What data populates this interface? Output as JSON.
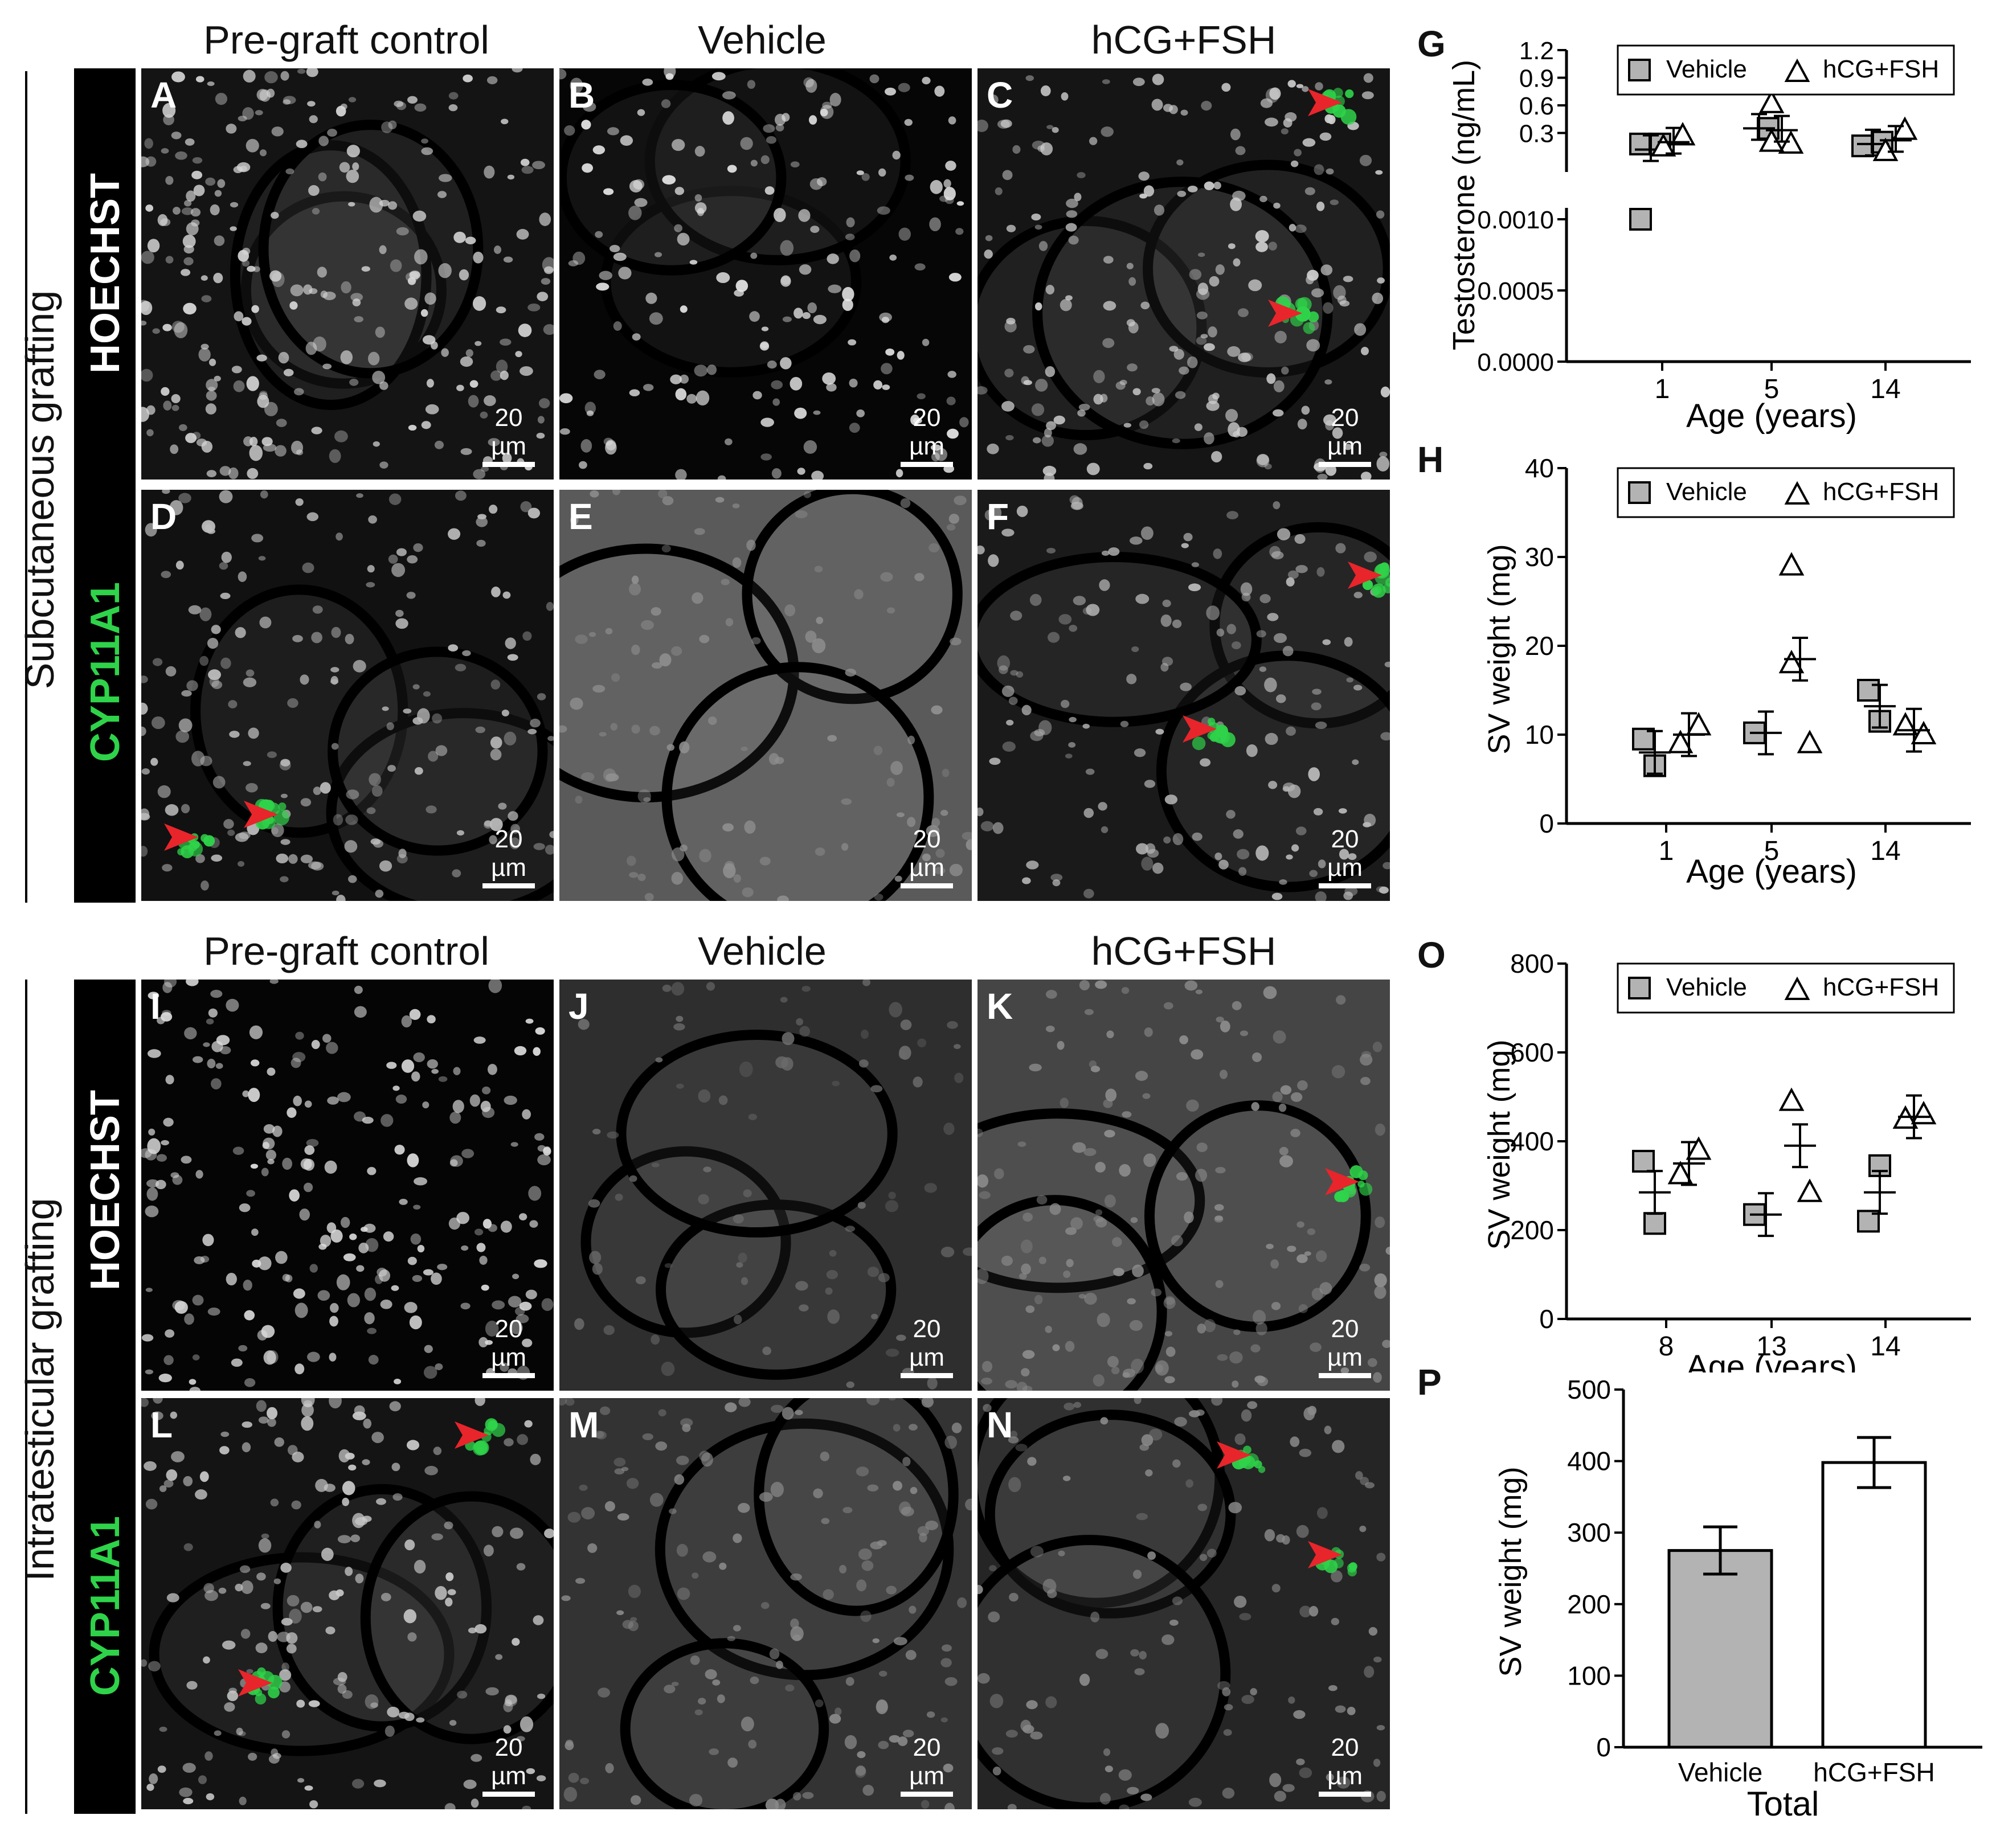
{
  "column_headers": [
    "Pre-graft control",
    "Vehicle",
    "hCG+FSH"
  ],
  "sections": [
    {
      "title": "Subcutaneous grafting",
      "stains": [
        "HOECHST",
        "CYP11A1"
      ]
    },
    {
      "title": "Intratesticular grafting",
      "stains": [
        "HOECHST",
        "CYP11A1"
      ]
    }
  ],
  "panels": [
    {
      "label": "A",
      "scale": "20 µm"
    },
    {
      "label": "B",
      "scale": "20 µm"
    },
    {
      "label": "C",
      "scale": "20 µm"
    },
    {
      "label": "D",
      "scale": "20 µm"
    },
    {
      "label": "E",
      "scale": "20 µm"
    },
    {
      "label": "F",
      "scale": "20 µm"
    },
    {
      "label": "I",
      "scale": "20 µm"
    },
    {
      "label": "J",
      "scale": "20 µm"
    },
    {
      "label": "K",
      "scale": "20 µm"
    },
    {
      "label": "L",
      "scale": "20 µm"
    },
    {
      "label": "M",
      "scale": "20 µm"
    },
    {
      "label": "N",
      "scale": "20 µm"
    }
  ],
  "colors": {
    "vehicle": "#b3b3b3",
    "hcg": "#ffffff",
    "green": "#2fd34a",
    "arrow": "#e8252b"
  },
  "chart_data": [
    {
      "id": "G",
      "type": "scatter",
      "xlabel": "Age (years)",
      "ylabel": "Testosterone (ng/mL)",
      "categories": [
        "1",
        "5",
        "14"
      ],
      "yticks_upper": [
        "1.2",
        "0.9",
        "0.6",
        "0.3"
      ],
      "yticks_lower": [
        "0.0010",
        "0.0005",
        "0.0000"
      ],
      "legend": [
        "Vehicle",
        "hCG+FSH"
      ],
      "series": [
        {
          "name": "Vehicle",
          "points": [
            [
              0,
              0.18
            ],
            [
              0,
              0.18
            ],
            [
              0,
              0.001
            ],
            [
              1,
              0.35
            ],
            [
              2,
              0.16
            ],
            [
              2,
              0.2
            ]
          ],
          "mean": [
            0.12,
            0.35,
            0.18
          ]
        },
        {
          "name": "hCG+FSH",
          "points": [
            [
              0,
              0.15
            ],
            [
              0,
              0.27
            ],
            [
              1,
              0.62
            ],
            [
              1,
              0.18
            ],
            [
              1,
              0.2
            ],
            [
              2,
              0.33
            ],
            [
              2,
              0.1
            ]
          ],
          "mean": [
            0.2,
            0.33,
            0.22
          ]
        }
      ]
    },
    {
      "id": "H",
      "type": "scatter",
      "xlabel": "Age (years)",
      "ylabel": "SV weight  (mg)",
      "categories": [
        "1",
        "5",
        "14"
      ],
      "yticks": [
        "0",
        "10",
        "20",
        "30",
        "40"
      ],
      "ylim": [
        0,
        40
      ],
      "legend": [
        "Vehicle",
        "hCG+FSH"
      ],
      "series": [
        {
          "name": "Vehicle",
          "points": [
            [
              0,
              9.5
            ],
            [
              0,
              6.5
            ],
            [
              1,
              10.2
            ],
            [
              2,
              11.5
            ],
            [
              2,
              15
            ]
          ],
          "mean": [
            8,
            10.2,
            13.2
          ]
        },
        {
          "name": "hCG+FSH",
          "points": [
            [
              0,
              9
            ],
            [
              0,
              11
            ],
            [
              1,
              29
            ],
            [
              1,
              9
            ],
            [
              1,
              18
            ],
            [
              2,
              10
            ],
            [
              2,
              11
            ]
          ],
          "mean": [
            10,
            18.5,
            10.5
          ]
        }
      ]
    },
    {
      "id": "O",
      "type": "scatter",
      "xlabel": "Age (years)",
      "ylabel": "SV weight  (mg)",
      "categories": [
        "8",
        "13",
        "14"
      ],
      "yticks": [
        "0",
        "200",
        "400",
        "600",
        "800"
      ],
      "ylim": [
        0,
        800
      ],
      "legend": [
        "Vehicle",
        "hCG+FSH"
      ],
      "series": [
        {
          "name": "Vehicle",
          "points": [
            [
              0,
              355
            ],
            [
              0,
              215
            ],
            [
              1,
              235
            ],
            [
              2,
              345
            ],
            [
              2,
              220
            ]
          ],
          "mean": [
            285,
            235,
            285
          ]
        },
        {
          "name": "hCG+FSH",
          "points": [
            [
              0,
              325
            ],
            [
              0,
              380
            ],
            [
              1,
              490
            ],
            [
              1,
              285
            ],
            [
              2,
              450
            ],
            [
              2,
              460
            ]
          ],
          "mean": [
            350,
            390,
            455
          ]
        }
      ]
    },
    {
      "id": "P",
      "type": "bar",
      "xlabel": "Total",
      "ylabel": "SV weight  (mg)",
      "categories": [
        "Vehicle",
        "hCG+FSH"
      ],
      "yticks": [
        "0",
        "100",
        "200",
        "300",
        "400",
        "500"
      ],
      "ylim": [
        0,
        500
      ],
      "values": [
        275,
        398
      ],
      "errors": [
        33,
        35
      ]
    }
  ]
}
